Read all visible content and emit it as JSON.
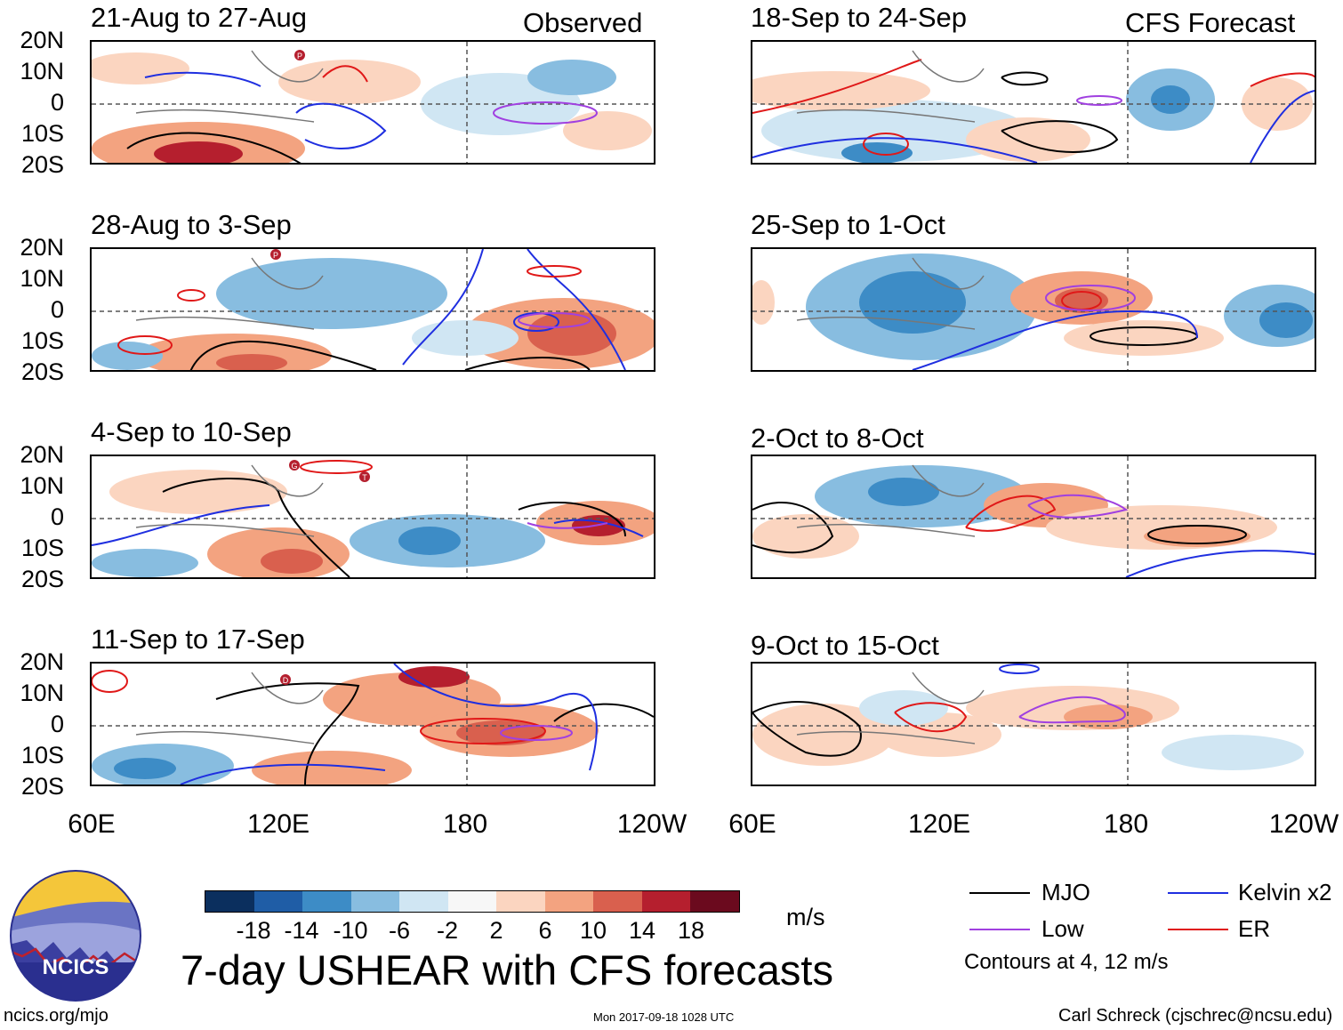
{
  "observed_label": "Observed",
  "forecast_label": "CFS Forecast",
  "lat_labels": [
    "20N",
    "10N",
    "0",
    "10S",
    "20S"
  ],
  "lon_labels": [
    "60E",
    "120E",
    "180",
    "120W"
  ],
  "panels": {
    "p1": {
      "title": "21-Aug to 27-Aug"
    },
    "p2": {
      "title": "28-Aug to 3-Sep"
    },
    "p3": {
      "title": "4-Sep to 10-Sep"
    },
    "p4": {
      "title": "11-Sep to 17-Sep"
    },
    "p5": {
      "title": "18-Sep to 24-Sep"
    },
    "p6": {
      "title": "25-Sep to 1-Oct"
    },
    "p7": {
      "title": "2-Oct to 8-Oct"
    },
    "p8": {
      "title": "9-Oct to 15-Oct"
    }
  },
  "storm_markers": {
    "p1_a": "P",
    "p2_a": "P",
    "p3_a": "G",
    "p3_b": "T",
    "p4_a": "D"
  },
  "colorbar": {
    "ticks": [
      "-18",
      "-14",
      "-10",
      "-6",
      "-2",
      "2",
      "6",
      "10",
      "14",
      "18"
    ],
    "units": "m/s",
    "colors": [
      "#0b2f5e",
      "#1f5da6",
      "#3d8cc6",
      "#88bde0",
      "#d0e6f3",
      "#f7f7f7",
      "#fbd5c0",
      "#f3a380",
      "#d9604e",
      "#b51f2e",
      "#6b0a1e"
    ]
  },
  "title": "7-day USHEAR with CFS forecasts",
  "legend": {
    "mjo": {
      "label": "MJO",
      "color": "#000000"
    },
    "low": {
      "label": "Low",
      "color": "#a040e0"
    },
    "kelvin": {
      "label": "Kelvin x2",
      "color": "#1f2fe0"
    },
    "er": {
      "label": "ER",
      "color": "#e01818"
    },
    "contours_note": "Contours at 4, 12 m/s"
  },
  "logo_text": "NCICS",
  "footer": {
    "url": "ncics.org/mjo",
    "timestamp": "Mon 2017-09-18 1028 UTC",
    "credit": "Carl Schreck (cjschrec@ncsu.edu)"
  }
}
